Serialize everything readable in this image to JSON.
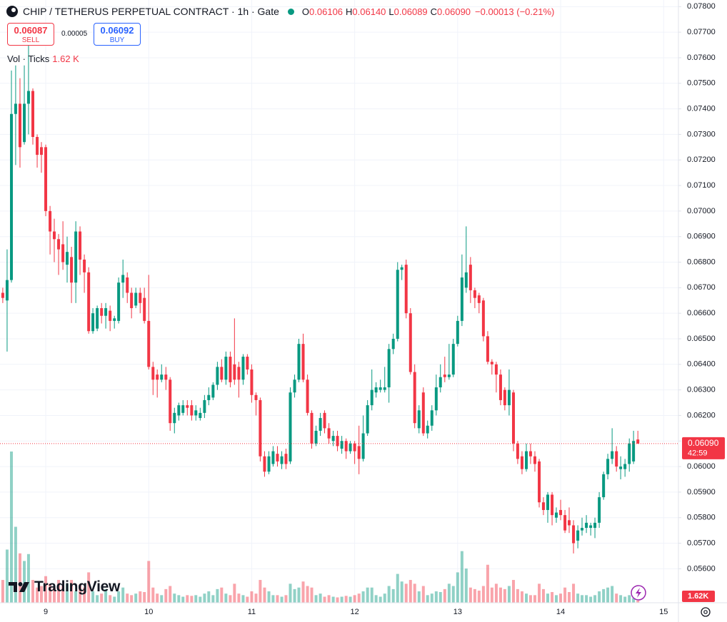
{
  "chart_data": {
    "type": "candlestick",
    "title": "CHIP / TETHERUS PERPETUAL CONTRACT · 1h · Gate",
    "ohlc": [
      {
        "key": "O",
        "value": "0.06106"
      },
      {
        "key": "H",
        "value": "0.06140"
      },
      {
        "key": "L",
        "value": "0.06089"
      },
      {
        "key": "C",
        "value": "0.06090"
      }
    ],
    "change": "−0.00013 (−0.21%)",
    "sell": {
      "price": "0.06087",
      "label": "SELL"
    },
    "spread": "0.00005",
    "buy": {
      "price": "0.06092",
      "label": "BUY"
    },
    "brand": "TradingView",
    "up_color": "#089981",
    "down_color": "#f23645",
    "grid": true,
    "x": [
      8.583,
      8.625,
      8.667,
      8.708,
      8.75,
      8.792,
      8.833,
      8.875,
      8.917,
      8.958,
      9,
      9.042,
      9.083,
      9.125,
      9.167,
      9.208,
      9.25,
      9.292,
      9.333,
      9.375,
      9.417,
      9.458,
      9.5,
      9.542,
      9.583,
      9.625,
      9.667,
      9.708,
      9.75,
      9.792,
      9.833,
      9.875,
      9.917,
      9.958,
      10,
      10.042,
      10.083,
      10.125,
      10.167,
      10.208,
      10.25,
      10.292,
      10.333,
      10.375,
      10.417,
      10.458,
      10.5,
      10.542,
      10.583,
      10.625,
      10.667,
      10.708,
      10.75,
      10.792,
      10.833,
      10.875,
      10.917,
      10.958,
      11,
      11.042,
      11.083,
      11.125,
      11.167,
      11.208,
      11.25,
      11.292,
      11.333,
      11.375,
      11.417,
      11.458,
      11.5,
      11.542,
      11.583,
      11.625,
      11.667,
      11.708,
      11.75,
      11.792,
      11.833,
      11.875,
      11.917,
      11.958,
      12,
      12.042,
      12.083,
      12.125,
      12.167,
      12.208,
      12.25,
      12.292,
      12.333,
      12.375,
      12.417,
      12.458,
      12.5,
      12.542,
      12.583,
      12.625,
      12.667,
      12.708,
      12.75,
      12.792,
      12.833,
      12.875,
      12.917,
      12.958,
      13,
      13.042,
      13.083,
      13.125,
      13.167,
      13.208,
      13.25,
      13.292,
      13.333,
      13.375,
      13.417,
      13.458,
      13.5,
      13.542,
      13.583,
      13.625,
      13.667,
      13.708,
      13.75,
      13.792,
      13.833,
      13.875,
      13.917,
      13.958,
      14,
      14.042,
      14.083,
      14.125,
      14.167,
      14.208,
      14.25,
      14.292,
      14.333,
      14.375,
      14.417,
      14.458,
      14.5,
      14.542,
      14.583,
      14.625,
      14.667,
      14.708,
      14.75
    ],
    "open": [
      0.0668,
      0.0665,
      0.0673,
      0.0738,
      0.0742,
      0.0727,
      0.0742,
      0.0747,
      0.0729,
      0.0725,
      0.0725,
      0.07,
      0.0692,
      0.0689,
      0.0687,
      0.0679,
      0.0682,
      0.0672,
      0.0692,
      0.0681,
      0.0676,
      0.0653,
      0.0654,
      0.0662,
      0.0659,
      0.0661,
      0.0657,
      0.0657,
      0.0672,
      0.0674,
      0.0668,
      0.0663,
      0.0668,
      0.0666,
      0.0657,
      0.0639,
      0.0636,
      0.0634,
      0.0636,
      0.0634,
      0.0617,
      0.062,
      0.0621,
      0.0624,
      0.0624,
      0.062,
      0.0619,
      0.0621,
      0.0626,
      0.0627,
      0.0632,
      0.0639,
      0.0634,
      0.0643,
      0.064,
      0.0639,
      0.0634,
      0.0643,
      0.0638,
      0.0628,
      0.0626,
      0.0604,
      0.0598,
      0.0601,
      0.0605,
      0.0601,
      0.0605,
      0.0602,
      0.0629,
      0.0634,
      0.0648,
      0.0634,
      0.0621,
      0.0609,
      0.0614,
      0.0621,
      0.0615,
      0.061,
      0.0612,
      0.0607,
      0.061,
      0.0606,
      0.0609,
      0.0608,
      0.0603,
      0.0613,
      0.0624,
      0.0629,
      0.063,
      0.063,
      0.0631,
      0.0646,
      0.065,
      0.0677,
      0.0679,
      0.066,
      0.0637,
      0.0615,
      0.0629,
      0.0613,
      0.0616,
      0.0622,
      0.0631,
      0.0636,
      0.0635,
      0.0636,
      0.0648,
      0.0657,
      0.067,
      0.0679,
      0.0669,
      0.0667,
      0.0665,
      0.0651,
      0.0641,
      0.064,
      0.0636,
      0.063,
      0.0624,
      0.0629,
      0.0609,
      0.0604,
      0.0599,
      0.0606,
      0.0604,
      0.0602,
      0.0586,
      0.0583,
      0.0589,
      0.058,
      0.0583,
      0.0581,
      0.0579,
      0.0577,
      0.0571,
      0.0575,
      0.0576,
      0.0576,
      0.0576,
      0.0578,
      0.0588,
      0.0597,
      0.0603,
      0.0606,
      0.0599,
      0.0599,
      0.0601,
      0.0602,
      0.06106
    ],
    "high": [
      0.067,
      0.0685,
      0.0755,
      0.0757,
      0.0752,
      0.0757,
      0.0765,
      0.0748,
      0.073,
      0.0727,
      0.0726,
      0.0702,
      0.0697,
      0.0691,
      0.0696,
      0.069,
      0.0686,
      0.0696,
      0.0694,
      0.0683,
      0.0678,
      0.0662,
      0.0663,
      0.0664,
      0.0664,
      0.0663,
      0.0659,
      0.0674,
      0.0681,
      0.0676,
      0.067,
      0.067,
      0.067,
      0.067,
      0.0675,
      0.0641,
      0.0638,
      0.064,
      0.0639,
      0.0635,
      0.0623,
      0.0625,
      0.0626,
      0.0626,
      0.0626,
      0.0624,
      0.0623,
      0.0628,
      0.0631,
      0.0633,
      0.0641,
      0.0642,
      0.0645,
      0.0645,
      0.0658,
      0.0641,
      0.0644,
      0.0644,
      0.064,
      0.0629,
      0.0627,
      0.0606,
      0.0606,
      0.0608,
      0.0608,
      0.0606,
      0.0607,
      0.0631,
      0.0636,
      0.065,
      0.0652,
      0.0636,
      0.0622,
      0.0616,
      0.0621,
      0.0622,
      0.0617,
      0.0614,
      0.0614,
      0.0612,
      0.0611,
      0.061,
      0.061,
      0.0616,
      0.062,
      0.0626,
      0.0638,
      0.0633,
      0.0634,
      0.0639,
      0.0648,
      0.0652,
      0.068,
      0.0679,
      0.0681,
      0.0662,
      0.064,
      0.0624,
      0.0631,
      0.0618,
      0.0624,
      0.0636,
      0.064,
      0.0643,
      0.0648,
      0.065,
      0.0659,
      0.0683,
      0.0694,
      0.0682,
      0.067,
      0.0668,
      0.0666,
      0.0653,
      0.0642,
      0.0641,
      0.0638,
      0.0631,
      0.0638,
      0.063,
      0.061,
      0.0606,
      0.0609,
      0.0609,
      0.0606,
      0.0603,
      0.0588,
      0.059,
      0.059,
      0.0584,
      0.0587,
      0.0583,
      0.0584,
      0.0579,
      0.0577,
      0.058,
      0.0581,
      0.0578,
      0.058,
      0.059,
      0.0598,
      0.0605,
      0.0615,
      0.0608,
      0.0604,
      0.0603,
      0.0611,
      0.0614,
      0.0614
    ],
    "low": [
      0.0664,
      0.0645,
      0.0672,
      0.0718,
      0.0717,
      0.0726,
      0.073,
      0.0726,
      0.0717,
      0.0715,
      0.0698,
      0.0683,
      0.068,
      0.0675,
      0.0677,
      0.0672,
      0.0664,
      0.0664,
      0.0675,
      0.0668,
      0.0652,
      0.0652,
      0.0653,
      0.0656,
      0.0654,
      0.0653,
      0.0654,
      0.0656,
      0.0666,
      0.0664,
      0.0658,
      0.0662,
      0.066,
      0.0656,
      0.0638,
      0.0628,
      0.0627,
      0.0633,
      0.063,
      0.0614,
      0.0613,
      0.0618,
      0.062,
      0.062,
      0.0618,
      0.0618,
      0.0618,
      0.0619,
      0.0624,
      0.0626,
      0.063,
      0.0633,
      0.0632,
      0.0631,
      0.0632,
      0.0627,
      0.0632,
      0.0636,
      0.0625,
      0.062,
      0.0602,
      0.0596,
      0.0597,
      0.06,
      0.06,
      0.0599,
      0.0599,
      0.0601,
      0.0627,
      0.0633,
      0.0633,
      0.062,
      0.0607,
      0.0608,
      0.0612,
      0.0613,
      0.0609,
      0.0608,
      0.0606,
      0.0605,
      0.0603,
      0.0605,
      0.0601,
      0.0597,
      0.0602,
      0.0612,
      0.0622,
      0.0627,
      0.0629,
      0.0629,
      0.0625,
      0.0644,
      0.0649,
      0.0673,
      0.0658,
      0.0636,
      0.0615,
      0.0613,
      0.0612,
      0.0611,
      0.0614,
      0.062,
      0.0629,
      0.0633,
      0.0634,
      0.0635,
      0.0647,
      0.0655,
      0.0668,
      0.0664,
      0.0662,
      0.066,
      0.0649,
      0.064,
      0.0636,
      0.0629,
      0.0624,
      0.0622,
      0.062,
      0.0606,
      0.0601,
      0.0597,
      0.0598,
      0.0601,
      0.0598,
      0.0584,
      0.0581,
      0.0578,
      0.0577,
      0.0578,
      0.0579,
      0.0574,
      0.0574,
      0.0566,
      0.0568,
      0.0573,
      0.0574,
      0.0573,
      0.0572,
      0.0576,
      0.0587,
      0.0595,
      0.0601,
      0.0598,
      0.0595,
      0.0596,
      0.0598,
      0.0601,
      0.06089
    ],
    "close": [
      0.0666,
      0.0673,
      0.0738,
      0.0742,
      0.0725,
      0.0742,
      0.0747,
      0.0729,
      0.0722,
      0.0722,
      0.07,
      0.0692,
      0.0689,
      0.0685,
      0.068,
      0.0684,
      0.0672,
      0.0692,
      0.0681,
      0.0676,
      0.0653,
      0.066,
      0.0662,
      0.0659,
      0.0662,
      0.0657,
      0.0658,
      0.0672,
      0.0675,
      0.0668,
      0.0662,
      0.0668,
      0.0664,
      0.0657,
      0.0639,
      0.0634,
      0.0634,
      0.0636,
      0.0634,
      0.0617,
      0.0621,
      0.0624,
      0.0624,
      0.0623,
      0.062,
      0.0622,
      0.0621,
      0.0626,
      0.0628,
      0.0632,
      0.0639,
      0.0634,
      0.0643,
      0.0633,
      0.0634,
      0.0634,
      0.0643,
      0.0638,
      0.0628,
      0.0626,
      0.0604,
      0.0598,
      0.0604,
      0.0606,
      0.0602,
      0.0604,
      0.0601,
      0.0629,
      0.0634,
      0.0648,
      0.0634,
      0.0621,
      0.0609,
      0.0614,
      0.0619,
      0.0615,
      0.0611,
      0.0612,
      0.0608,
      0.061,
      0.0606,
      0.0609,
      0.0606,
      0.0603,
      0.0613,
      0.0624,
      0.063,
      0.0631,
      0.0631,
      0.0631,
      0.0646,
      0.065,
      0.0677,
      0.0678,
      0.066,
      0.0637,
      0.0617,
      0.0622,
      0.0613,
      0.0616,
      0.0622,
      0.0631,
      0.0635,
      0.0635,
      0.0636,
      0.0648,
      0.0657,
      0.0674,
      0.0676,
      0.0669,
      0.0666,
      0.0664,
      0.0651,
      0.0641,
      0.064,
      0.0636,
      0.0626,
      0.0624,
      0.063,
      0.0609,
      0.0603,
      0.0599,
      0.0606,
      0.0604,
      0.0601,
      0.0586,
      0.0583,
      0.0589,
      0.0581,
      0.0582,
      0.0581,
      0.0575,
      0.0577,
      0.057,
      0.0575,
      0.0576,
      0.0578,
      0.0577,
      0.0578,
      0.0588,
      0.0597,
      0.0603,
      0.0606,
      0.06,
      0.06,
      0.0601,
      0.0609,
      0.061,
      0.0609
    ],
    "volume": {
      "name": "Vol · Ticks",
      "last_label": "1.62 K",
      "axis_label": "1.62K",
      "values": [
        16.2,
        37.8,
        107.5,
        54,
        35.1,
        29.7,
        34.6,
        16.2,
        10.8,
        11.9,
        18.9,
        13.5,
        10.8,
        16.2,
        11.9,
        13.5,
        16.2,
        8.1,
        13,
        10.8,
        21.6,
        8.1,
        5.4,
        6.5,
        9.7,
        5.4,
        4.3,
        8.1,
        10.8,
        6.5,
        5.4,
        6.5,
        8.1,
        7.6,
        29.7,
        10.8,
        6.5,
        5.4,
        9.7,
        11.9,
        6.5,
        5.4,
        4.3,
        5.4,
        4.9,
        5.4,
        4.3,
        6.5,
        8.1,
        5.4,
        9.7,
        10.8,
        6.5,
        5.4,
        13.5,
        6.5,
        5.4,
        4.3,
        8.1,
        6.5,
        16.2,
        10.8,
        8.1,
        5.4,
        5.4,
        4.3,
        5.4,
        13.5,
        9.7,
        10.8,
        15.1,
        11.9,
        10.8,
        5.4,
        6.5,
        4.3,
        5.4,
        4.3,
        3.8,
        4.3,
        4.9,
        4.3,
        5.4,
        6.5,
        8.1,
        10.8,
        10.8,
        5.4,
        4.3,
        6.5,
        11.9,
        9.7,
        20.5,
        15.1,
        13.5,
        16.2,
        13.5,
        8.1,
        11.9,
        5.4,
        6.5,
        8.1,
        7.6,
        9.7,
        13.5,
        11.9,
        21.6,
        36.7,
        24.3,
        10.8,
        9.7,
        8.6,
        11.9,
        27,
        10.8,
        13.5,
        10.8,
        9.7,
        11.9,
        16.2,
        9.7,
        8.1,
        6.5,
        5.4,
        5.4,
        13.5,
        9.7,
        6.5,
        7.6,
        5.4,
        6.5,
        10.8,
        7.6,
        13.5,
        6.5,
        5.4,
        5.4,
        4.3,
        5.4,
        8.1,
        9.7,
        10.8,
        11.9,
        6.5,
        5.4,
        4.3,
        5.4,
        3.2,
        1.62
      ]
    },
    "last_price": {
      "value": 0.0609,
      "label": "0.06090"
    },
    "countdown": "42:59",
    "xlim": [
      8.556,
      15.144
    ],
    "xticks": [
      9,
      10,
      11,
      12,
      13,
      14,
      15
    ],
    "ylim": [
      0.05467,
      0.07826
    ],
    "yticks": [
      {
        "value": 0.056,
        "label": "0.05600"
      },
      {
        "value": 0.057,
        "label": "0.05700"
      },
      {
        "value": 0.058,
        "label": "0.05800"
      },
      {
        "value": 0.059,
        "label": "0.05900"
      },
      {
        "value": 0.06,
        "label": "0.06000"
      },
      {
        "value": 0.061,
        "label": "0.06100"
      },
      {
        "value": 0.062,
        "label": "0.06200"
      },
      {
        "value": 0.063,
        "label": "0.06300"
      },
      {
        "value": 0.064,
        "label": "0.06400"
      },
      {
        "value": 0.065,
        "label": "0.06500"
      },
      {
        "value": 0.066,
        "label": "0.06600"
      },
      {
        "value": 0.067,
        "label": "0.06700"
      },
      {
        "value": 0.068,
        "label": "0.06800"
      },
      {
        "value": 0.069,
        "label": "0.06900"
      },
      {
        "value": 0.07,
        "label": "0.07000"
      },
      {
        "value": 0.071,
        "label": "0.07100"
      },
      {
        "value": 0.072,
        "label": "0.07200"
      },
      {
        "value": 0.073,
        "label": "0.07300"
      },
      {
        "value": 0.074,
        "label": "0.07400"
      },
      {
        "value": 0.075,
        "label": "0.07500"
      },
      {
        "value": 0.076,
        "label": "0.07600"
      },
      {
        "value": 0.077,
        "label": "0.07700"
      },
      {
        "value": 0.078,
        "label": "0.07800"
      }
    ]
  }
}
